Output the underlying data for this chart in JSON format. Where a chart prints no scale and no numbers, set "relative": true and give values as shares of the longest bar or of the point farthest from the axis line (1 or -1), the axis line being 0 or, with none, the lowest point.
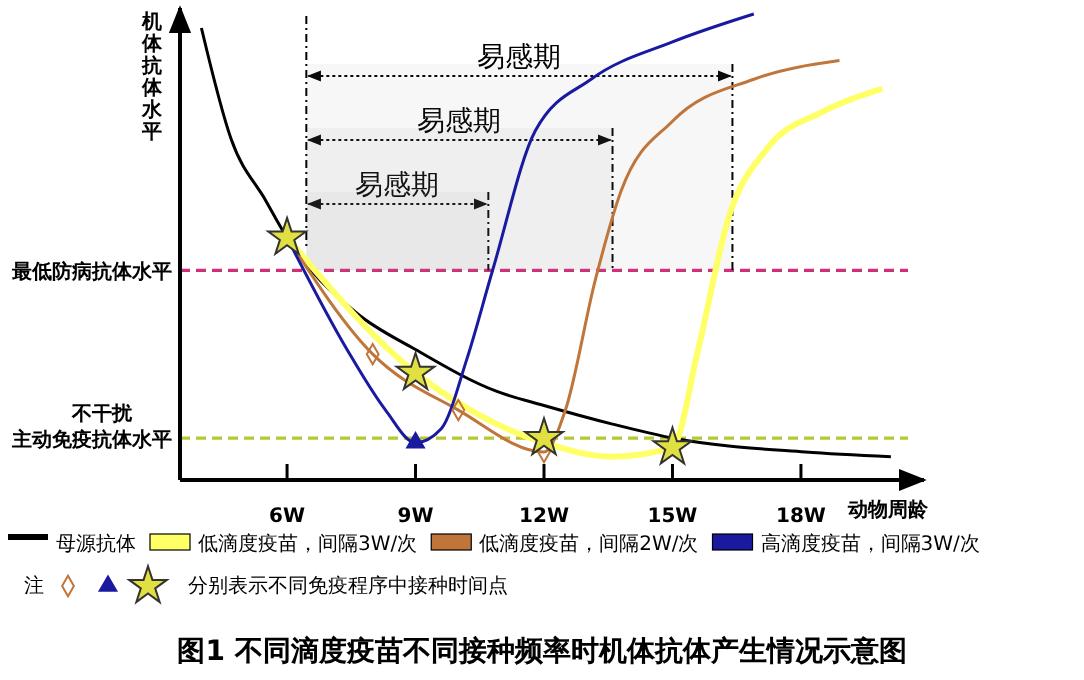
{
  "chart_data": {
    "type": "line",
    "title": "图1  不同滴度疫苗不同接种频率时机体抗体产生情况示意图",
    "xlabel": "动物周龄",
    "ylabel": "机体抗体水平",
    "relative": true,
    "xlim": [
      3.5,
      20.5
    ],
    "xticks": [
      {
        "value": 6,
        "label": "6W"
      },
      {
        "value": 9,
        "label": "9W"
      },
      {
        "value": 12,
        "label": "12W"
      },
      {
        "value": 15,
        "label": "15W"
      },
      {
        "value": 18,
        "label": "18W"
      }
    ],
    "grid": false,
    "legend": "bottom",
    "line_style": "solid",
    "marker": "none",
    "series": [
      {
        "name": "母源抗体",
        "color": "#000000",
        "x": [
          4.0,
          4.7,
          5.5,
          6,
          7.6,
          9,
          10.9,
          12,
          13.6,
          15,
          18.1,
          20.1
        ],
        "values": [
          0.97,
          0.73,
          0.6,
          0.52,
          0.36,
          0.28,
          0.19,
          0.16,
          0.12,
          0.09,
          0.06,
          0.05
        ]
      },
      {
        "name": "低滴度疫苗，间隔3W/次",
        "color": "#ffff66",
        "x": [
          6,
          9,
          10.9,
          12,
          13.6,
          15,
          15.6,
          16.3,
          17.2,
          18.5,
          19.9
        ],
        "values": [
          0.52,
          0.23,
          0.12,
          0.08,
          0.05,
          0.07,
          0.28,
          0.56,
          0.71,
          0.79,
          0.84
        ]
      },
      {
        "name": "低滴度疫苗，间隔2W/次",
        "color": "#c0753a",
        "x": [
          6,
          8,
          10,
          12,
          12.5,
          13.2,
          13.8,
          15,
          16.9,
          18.9
        ],
        "values": [
          0.52,
          0.27,
          0.15,
          0.06,
          0.15,
          0.43,
          0.62,
          0.77,
          0.86,
          0.9
        ]
      },
      {
        "name": "高滴度疫苗，间隔3W/次",
        "color": "#1a1aa0",
        "x": [
          6,
          7.4,
          8.3,
          9,
          9.6,
          10.2,
          10.8,
          11.8,
          13.1,
          15,
          16.9
        ],
        "values": [
          0.52,
          0.28,
          0.15,
          0.08,
          0.11,
          0.26,
          0.45,
          0.75,
          0.86,
          0.94,
          1
        ]
      },
      {
        "type": "scatter",
        "marker": "diamond",
        "color": "#c0753a",
        "x": [
          8,
          10,
          12
        ],
        "values": [
          0.27,
          0.15,
          0.06
        ]
      },
      {
        "type": "scatter",
        "marker": "triangle",
        "color": "#1a1aa0",
        "x": [
          9
        ],
        "values": [
          0.08
        ]
      },
      {
        "type": "scatter",
        "marker": "star",
        "color": "#e0e040",
        "x": [
          6,
          9,
          12,
          15
        ],
        "values": [
          0.52,
          0.23,
          0.09,
          0.07
        ]
      }
    ],
    "ref_lines": [
      {
        "axis": "y",
        "value": 0.45,
        "label": "最低防病抗体水平",
        "color": "#d0307a",
        "line_style": "dashed"
      },
      {
        "axis": "y",
        "value": 0.09,
        "label": "不干扰主动免疫抗体水平",
        "color": "#b8c832",
        "line_style": "dashed"
      }
    ],
    "bands": [
      {
        "axis": "x",
        "from": 6.45,
        "to": 10.7,
        "label": "易感期"
      },
      {
        "axis": "x",
        "from": 6.45,
        "to": 13.6,
        "label": "易感期"
      },
      {
        "axis": "x",
        "from": 6.45,
        "to": 16.4,
        "label": "易感期"
      }
    ],
    "annotations": [
      "注",
      "分别表示不同免疫程序中接种时间点"
    ]
  }
}
